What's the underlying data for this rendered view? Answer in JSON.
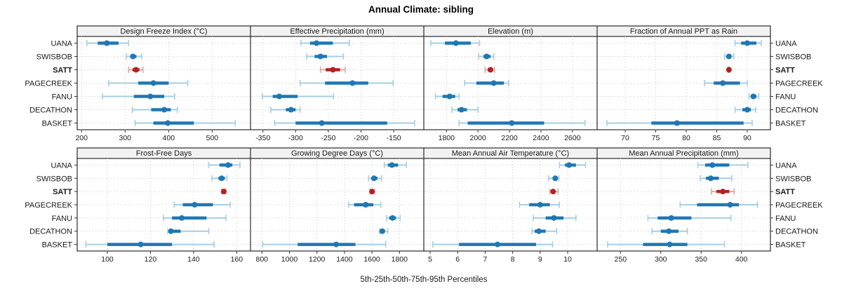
{
  "title": "Annual Climate: sibling",
  "xlabel": "5th-25th-50th-75th-95th Percentiles",
  "colors": {
    "normal": "#1F77B4",
    "normal_light": "#A6CEE3",
    "highlight": "#B22222",
    "highlight_light": "#E8A3A3",
    "strip_bg": "#F2F2F2",
    "grid": "#C9C9C9",
    "border": "#000000",
    "tick": "#333333",
    "text": "#1A1A1A"
  },
  "chart_data": {
    "type": "percentile_dot_trellis",
    "percentile_labels": [
      "5th",
      "25th",
      "50th",
      "75th",
      "95th"
    ],
    "sites": [
      "UANA",
      "SWISBOB",
      "SATT",
      "PAGECREEK",
      "FANU",
      "DECATHON",
      "BASKET"
    ],
    "highlight_site": "SATT",
    "grid": true,
    "panels": [
      {
        "title": "Design Freeze Index (°C)",
        "xlim": [
          190,
          588
        ],
        "ticks": [
          200,
          300,
          400,
          500
        ],
        "values": {
          "UANA": [
            212,
            237,
            258,
            285,
            308
          ],
          "SWISBOB": [
            303,
            312,
            318,
            326,
            338
          ],
          "SATT": [
            308,
            317,
            325,
            333,
            341
          ],
          "PAGECREEK": [
            262,
            330,
            365,
            400,
            444
          ],
          "FANU": [
            248,
            320,
            358,
            390,
            414
          ],
          "DECATHON": [
            317,
            360,
            390,
            405,
            420
          ],
          "BASKET": [
            323,
            365,
            398,
            458,
            553
          ]
        }
      },
      {
        "title": "Effective Precipitation (mm)",
        "xlim": [
          -369,
          -104
        ],
        "ticks": [
          -350,
          -300,
          -250,
          -200,
          -150
        ],
        "values": {
          "UANA": [
            -292,
            -278,
            -268,
            -243,
            -218
          ],
          "SWISBOB": [
            -283,
            -271,
            -262,
            -252,
            -227
          ],
          "SATT": [
            -262,
            -254,
            -243,
            -232,
            -224
          ],
          "PAGECREEK": [
            -293,
            -255,
            -213,
            -189,
            -151
          ],
          "FANU": [
            -351,
            -335,
            -325,
            -297,
            -242
          ],
          "DECATHON": [
            -338,
            -315,
            -307,
            -300,
            -293
          ],
          "BASKET": [
            -332,
            -300,
            -260,
            -160,
            -118
          ]
        }
      },
      {
        "title": "Elevation (m)",
        "xlim": [
          1656,
          2757
        ],
        "ticks": [
          1800,
          2000,
          2200,
          2400,
          2600
        ],
        "values": {
          "UANA": [
            1700,
            1790,
            1860,
            1955,
            2010
          ],
          "SWISBOB": [
            2005,
            2035,
            2055,
            2080,
            2100
          ],
          "SATT": [
            2045,
            2062,
            2080,
            2093,
            2105
          ],
          "PAGECREEK": [
            1915,
            1990,
            2100,
            2165,
            2195
          ],
          "FANU": [
            1730,
            1775,
            1820,
            1855,
            1880
          ],
          "DECATHON": [
            1835,
            1870,
            1895,
            1930,
            2000
          ],
          "BASKET": [
            1880,
            1935,
            2215,
            2420,
            2680
          ]
        }
      },
      {
        "title": "Fraction of Annual PPT as Rain",
        "xlim": [
          65.4,
          93.8
        ],
        "ticks": [
          70,
          75,
          80,
          85,
          90
        ],
        "values": {
          "UANA": [
            88.0,
            89.0,
            90.0,
            91.5,
            92.3
          ],
          "SWISBOB": [
            86.3,
            86.7,
            87.0,
            87.4,
            87.8
          ],
          "SATT": [
            86.9,
            86.95,
            87.0,
            87.05,
            87.1
          ],
          "PAGECREEK": [
            83.0,
            84.5,
            86.0,
            88.8,
            90.0
          ],
          "FANU": [
            90.3,
            90.7,
            91.0,
            91.5,
            91.9
          ],
          "DECATHON": [
            88.0,
            89.2,
            90.0,
            90.6,
            91.4
          ],
          "BASKET": [
            67.0,
            74.3,
            78.5,
            89.4,
            90.8
          ]
        }
      },
      {
        "title": "Frost-Free Days",
        "xlim": [
          86,
          166.4
        ],
        "ticks": [
          100,
          120,
          140,
          160
        ],
        "values": {
          "UANA": [
            147,
            152,
            156,
            158,
            161.5
          ],
          "SWISBOB": [
            148.5,
            151.5,
            153,
            154.5,
            155.5
          ],
          "SATT": [
            153,
            153.5,
            154,
            154.5,
            155
          ],
          "PAGECREEK": [
            131,
            135,
            140.5,
            149,
            157
          ],
          "FANU": [
            126,
            130,
            134.5,
            146,
            155
          ],
          "DECATHON": [
            128,
            128.5,
            129.5,
            134,
            147
          ],
          "BASKET": [
            90,
            100,
            115.5,
            130,
            149.5
          ]
        }
      },
      {
        "title": "Growing Degree Days (°C)",
        "xlim": [
          717,
          1977
        ],
        "ticks": [
          800,
          1000,
          1200,
          1400,
          1600,
          1800
        ],
        "values": {
          "UANA": [
            1690,
            1715,
            1745,
            1790,
            1850
          ],
          "SWISBOB": [
            1575,
            1595,
            1615,
            1640,
            1670
          ],
          "SATT": [
            1585,
            1592,
            1600,
            1612,
            1620
          ],
          "PAGECREEK": [
            1430,
            1470,
            1555,
            1610,
            1665
          ],
          "FANU": [
            1705,
            1725,
            1750,
            1775,
            1805
          ],
          "DECATHON": [
            1655,
            1665,
            1675,
            1695,
            1715
          ],
          "BASKET": [
            805,
            1060,
            1340,
            1480,
            1700
          ]
        }
      },
      {
        "title": "Mean Annual Air Temperature (°C)",
        "xlim": [
          4.77,
          11.07
        ],
        "ticks": [
          5,
          6,
          7,
          8,
          9,
          10
        ],
        "values": {
          "UANA": [
            9.7,
            9.9,
            10.05,
            10.3,
            10.65
          ],
          "SWISBOB": [
            9.3,
            9.45,
            9.55,
            9.62,
            9.68
          ],
          "SATT": [
            9.35,
            9.42,
            9.47,
            9.55,
            9.65
          ],
          "PAGECREEK": [
            8.25,
            8.6,
            9.0,
            9.35,
            9.7
          ],
          "FANU": [
            8.75,
            9.2,
            9.5,
            9.85,
            10.3
          ],
          "DECATHON": [
            8.7,
            8.8,
            8.95,
            9.2,
            9.6
          ],
          "BASKET": [
            5.1,
            6.05,
            7.45,
            8.85,
            9.45
          ]
        }
      },
      {
        "title": "Mean Annual Precipitation (mm)",
        "xlim": [
          221,
          436
        ],
        "ticks": [
          250,
          300,
          350,
          400
        ],
        "values": {
          "UANA": [
            346,
            355,
            364,
            385,
            408
          ],
          "SWISBOB": [
            349,
            356,
            362,
            372,
            388
          ],
          "SATT": [
            363,
            369,
            377,
            385,
            391
          ],
          "PAGECREEK": [
            324,
            345,
            386,
            397,
            420
          ],
          "FANU": [
            284,
            296,
            313,
            338,
            387
          ],
          "DECATHON": [
            289,
            300,
            310,
            322,
            333
          ],
          "BASKET": [
            234,
            278,
            311,
            333,
            379
          ]
        }
      }
    ]
  }
}
